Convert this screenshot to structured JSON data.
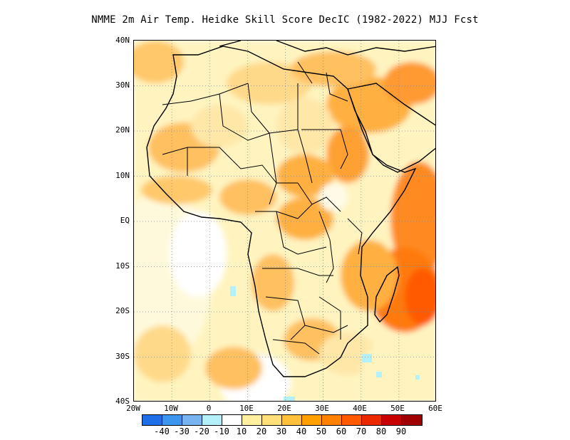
{
  "title": "NMME  2m Air Temp. Heidke Skill Score DecIC (1982-2022) MJJ Fcst",
  "map": {
    "lat_ticks": [
      "40N",
      "30N",
      "20N",
      "10N",
      "EQ",
      "10S",
      "20S",
      "30S",
      "40S"
    ],
    "lon_ticks": [
      "20W",
      "10W",
      "0",
      "10E",
      "20E",
      "30E",
      "40E",
      "50E",
      "60E"
    ],
    "lat_range": [
      -40,
      40
    ],
    "lon_range": [
      -20,
      60
    ],
    "grid": "dotted"
  },
  "colorbar": {
    "colors": [
      "#1e6ee8",
      "#3c96f0",
      "#78b4f0",
      "#b4f0fa",
      "#ffffff",
      "#fff0a0",
      "#ffe078",
      "#ffc03c",
      "#ffa000",
      "#ff8200",
      "#ff5a00",
      "#eb2800",
      "#c80000",
      "#a00000"
    ],
    "labels": [
      "-40",
      "-30",
      "-20",
      "-10",
      "10",
      "20",
      "30",
      "40",
      "50",
      "60",
      "70",
      "80",
      "90"
    ]
  }
}
